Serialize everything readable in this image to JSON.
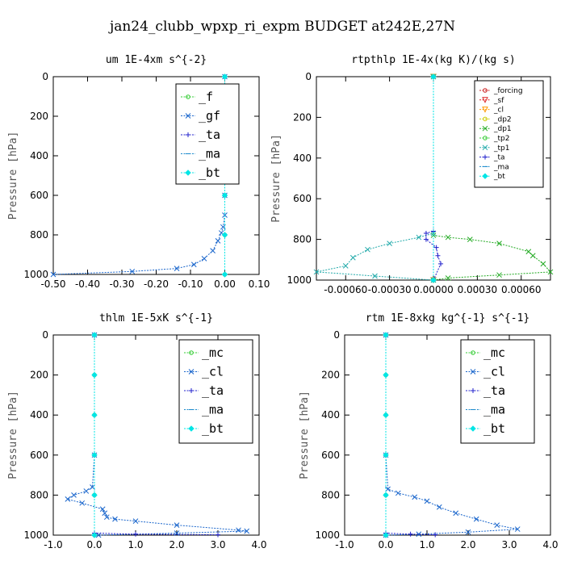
{
  "figure_title": "jan24_clubb_wpxp_ri_expm  BUDGET at242E,27N",
  "chart_data": [
    {
      "type": "line",
      "title": "um   1E-4xm s^{-2}",
      "ylabel": "Pressure [hPa]",
      "xlim": [
        -0.5,
        0.1
      ],
      "ylim": [
        1000,
        0
      ],
      "xticks": [
        "-0.50",
        "-0.40",
        "-0.30",
        "-0.20",
        "-0.10",
        "0.00",
        "0.10"
      ],
      "yticks": [
        "0",
        "200",
        "400",
        "600",
        "800",
        "1000"
      ],
      "series": [
        {
          "name": "_f",
          "color": "#33cc33",
          "marker": "o",
          "points": [
            [
              0.0,
              0
            ],
            [
              0.0,
              200
            ],
            [
              0.0,
              400
            ],
            [
              0.0,
              600
            ],
            [
              0.0,
              800
            ],
            [
              0.0,
              1000
            ]
          ]
        },
        {
          "name": "_gf",
          "color": "#1a66cc",
          "marker": "x",
          "points": [
            [
              0.0,
              0
            ],
            [
              0.0,
              400
            ],
            [
              0.0,
              600
            ],
            [
              0.0,
              700
            ],
            [
              -0.005,
              760
            ],
            [
              -0.01,
              790
            ],
            [
              -0.02,
              830
            ],
            [
              -0.035,
              880
            ],
            [
              -0.06,
              920
            ],
            [
              -0.09,
              950
            ],
            [
              -0.14,
              970
            ],
            [
              -0.27,
              985
            ],
            [
              -0.5,
              1000
            ]
          ]
        },
        {
          "name": "_ta",
          "color": "#2222cc",
          "marker": "+",
          "points": [
            [
              0.0,
              0
            ],
            [
              0.0,
              1000
            ]
          ]
        },
        {
          "name": "_ma",
          "color": "#1a8acc",
          "marker": "-",
          "points": [
            [
              0.0,
              0
            ],
            [
              0.0,
              1000
            ]
          ]
        },
        {
          "name": "_bt",
          "color": "#00e5e5",
          "marker": "diamond",
          "points": [
            [
              0.0,
              0
            ],
            [
              0.0,
              200
            ],
            [
              0.0,
              400
            ],
            [
              0.0,
              600
            ],
            [
              0.0,
              800
            ],
            [
              0.0,
              1000
            ]
          ]
        }
      ],
      "legend": "top-right"
    },
    {
      "type": "line",
      "title": "rtpthlp   1E-4x(kg K)/(kg s)",
      "ylabel": "Pressure [hPa]",
      "xlim": [
        -0.0008,
        0.0008
      ],
      "ylim": [
        1000,
        0
      ],
      "xticks": [
        "-0.00060",
        "-0.00030",
        "0.00000",
        "0.00030",
        "0.00060"
      ],
      "yticks": [
        "0",
        "200",
        "400",
        "600",
        "800",
        "1000"
      ],
      "series": [
        {
          "name": "_forcing",
          "color": "#cc2222",
          "marker": "o",
          "points": [
            [
              0.0,
              0
            ],
            [
              0.0,
              1000
            ]
          ]
        },
        {
          "name": "_sf",
          "color": "#dd2222",
          "marker": "triangle",
          "points": [
            [
              0.0,
              0
            ],
            [
              0.0,
              1000
            ]
          ]
        },
        {
          "name": "_cl",
          "color": "#ff9900",
          "marker": "triangle",
          "points": [
            [
              0.0,
              0
            ],
            [
              0.0,
              1000
            ]
          ]
        },
        {
          "name": "_dp2",
          "color": "#cccc00",
          "marker": "o",
          "points": [
            [
              0.0,
              0
            ],
            [
              0.0,
              1000
            ]
          ]
        },
        {
          "name": "_dp1",
          "color": "#22aa22",
          "marker": "x",
          "points": [
            [
              0.0,
              0
            ],
            [
              0.0,
              780
            ],
            [
              0.0001,
              790
            ],
            [
              0.00025,
              800
            ],
            [
              0.00045,
              820
            ],
            [
              0.00065,
              860
            ],
            [
              0.00068,
              880
            ],
            [
              0.00075,
              920
            ],
            [
              0.0008,
              960
            ],
            [
              0.00045,
              975
            ],
            [
              0.0001,
              990
            ],
            [
              0.0,
              1000
            ]
          ]
        },
        {
          "name": "_tp2",
          "color": "#33cc33",
          "marker": "o",
          "points": [
            [
              0.0,
              0
            ],
            [
              0.0,
              1000
            ]
          ]
        },
        {
          "name": "_tp1",
          "color": "#22aaaa",
          "marker": "x",
          "points": [
            [
              0.0,
              0
            ],
            [
              0.0,
              770
            ],
            [
              -0.0001,
              790
            ],
            [
              -0.0003,
              820
            ],
            [
              -0.00045,
              850
            ],
            [
              -0.00055,
              890
            ],
            [
              -0.0006,
              930
            ],
            [
              -0.0008,
              960
            ],
            [
              -0.0004,
              980
            ],
            [
              0.0,
              1000
            ]
          ]
        },
        {
          "name": "_ta",
          "color": "#2222cc",
          "marker": "+",
          "points": [
            [
              0.0,
              0
            ],
            [
              0.0,
              760
            ],
            [
              -5e-05,
              770
            ],
            [
              -5e-05,
              800
            ],
            [
              2e-05,
              840
            ],
            [
              3e-05,
              880
            ],
            [
              5e-05,
              920
            ],
            [
              0.0,
              1000
            ]
          ]
        },
        {
          "name": "_ma",
          "color": "#1a8acc",
          "marker": "-",
          "points": [
            [
              0.0,
              0
            ],
            [
              0.0,
              1000
            ]
          ]
        },
        {
          "name": "_bt",
          "color": "#00e5e5",
          "marker": "diamond",
          "points": [
            [
              0.0,
              0
            ],
            [
              0.0,
              1000
            ]
          ]
        }
      ],
      "legend": "top-right"
    },
    {
      "type": "line",
      "title": "thlm   1E-5xK s^{-1}",
      "ylabel": "Pressure [hPa]",
      "xlim": [
        -1.0,
        4.0
      ],
      "ylim": [
        1000,
        0
      ],
      "xticks": [
        "-1.0",
        "0.0",
        "1.0",
        "2.0",
        "3.0",
        "4.0"
      ],
      "yticks": [
        "0",
        "200",
        "400",
        "600",
        "800",
        "1000"
      ],
      "series": [
        {
          "name": "_mc",
          "color": "#33cc33",
          "marker": "o",
          "points": [
            [
              0.0,
              0
            ],
            [
              0.0,
              200
            ],
            [
              0.0,
              400
            ],
            [
              0.0,
              600
            ],
            [
              0.0,
              800
            ],
            [
              0.0,
              1000
            ]
          ]
        },
        {
          "name": "_cl",
          "color": "#1a66cc",
          "marker": "x",
          "points": [
            [
              0.0,
              0
            ],
            [
              0.0,
              600
            ],
            [
              -0.05,
              760
            ],
            [
              -0.2,
              780
            ],
            [
              -0.5,
              800
            ],
            [
              -0.65,
              820
            ],
            [
              -0.3,
              840
            ],
            [
              0.2,
              870
            ],
            [
              0.25,
              890
            ],
            [
              0.3,
              910
            ],
            [
              0.5,
              920
            ],
            [
              1.0,
              930
            ],
            [
              2.0,
              950
            ],
            [
              3.5,
              975
            ],
            [
              3.7,
              980
            ],
            [
              2.0,
              990
            ],
            [
              0.1,
              1000
            ]
          ]
        },
        {
          "name": "_ta",
          "color": "#2222cc",
          "marker": "+",
          "points": [
            [
              0.0,
              0
            ],
            [
              0.0,
              990
            ],
            [
              1.0,
              995
            ],
            [
              3.0,
              998
            ]
          ]
        },
        {
          "name": "_ma",
          "color": "#1a8acc",
          "marker": "-",
          "points": [
            [
              0.0,
              0
            ],
            [
              0.0,
              1000
            ]
          ]
        },
        {
          "name": "_bt",
          "color": "#00e5e5",
          "marker": "diamond",
          "points": [
            [
              0.0,
              0
            ],
            [
              0.0,
              200
            ],
            [
              0.0,
              400
            ],
            [
              0.0,
              600
            ],
            [
              0.0,
              800
            ],
            [
              0.0,
              1000
            ]
          ]
        }
      ],
      "legend": "top-right"
    },
    {
      "type": "line",
      "title": "rtm   1E-8xkg kg^{-1} s^{-1}",
      "ylabel": "Pressure [hPa]",
      "xlim": [
        -1.0,
        4.0
      ],
      "ylim": [
        1000,
        0
      ],
      "xticks": [
        "-1.0",
        "0.0",
        "1.0",
        "2.0",
        "3.0",
        "4.0"
      ],
      "yticks": [
        "0",
        "200",
        "400",
        "600",
        "800",
        "1000"
      ],
      "series": [
        {
          "name": "_mc",
          "color": "#33cc33",
          "marker": "o",
          "points": [
            [
              0.0,
              0
            ],
            [
              0.0,
              200
            ],
            [
              0.0,
              400
            ],
            [
              0.0,
              600
            ],
            [
              0.0,
              800
            ],
            [
              0.0,
              1000
            ]
          ]
        },
        {
          "name": "_cl",
          "color": "#1a66cc",
          "marker": "x",
          "points": [
            [
              0.0,
              0
            ],
            [
              0.0,
              600
            ],
            [
              0.05,
              770
            ],
            [
              0.3,
              790
            ],
            [
              0.7,
              810
            ],
            [
              1.0,
              830
            ],
            [
              1.3,
              860
            ],
            [
              1.7,
              890
            ],
            [
              2.2,
              920
            ],
            [
              2.7,
              950
            ],
            [
              3.2,
              970
            ],
            [
              2.0,
              985
            ],
            [
              0.8,
              995
            ],
            [
              0.0,
              1000
            ]
          ]
        },
        {
          "name": "_ta",
          "color": "#2222cc",
          "marker": "+",
          "points": [
            [
              0.0,
              0
            ],
            [
              0.0,
              990
            ],
            [
              0.6,
              995
            ],
            [
              1.2,
              998
            ]
          ]
        },
        {
          "name": "_ma",
          "color": "#1a8acc",
          "marker": "-",
          "points": [
            [
              0.0,
              0
            ],
            [
              0.0,
              1000
            ]
          ]
        },
        {
          "name": "_bt",
          "color": "#00e5e5",
          "marker": "diamond",
          "points": [
            [
              0.0,
              0
            ],
            [
              0.0,
              200
            ],
            [
              0.0,
              400
            ],
            [
              0.0,
              600
            ],
            [
              0.0,
              800
            ],
            [
              0.0,
              1000
            ]
          ]
        }
      ],
      "legend": "top-right"
    }
  ]
}
